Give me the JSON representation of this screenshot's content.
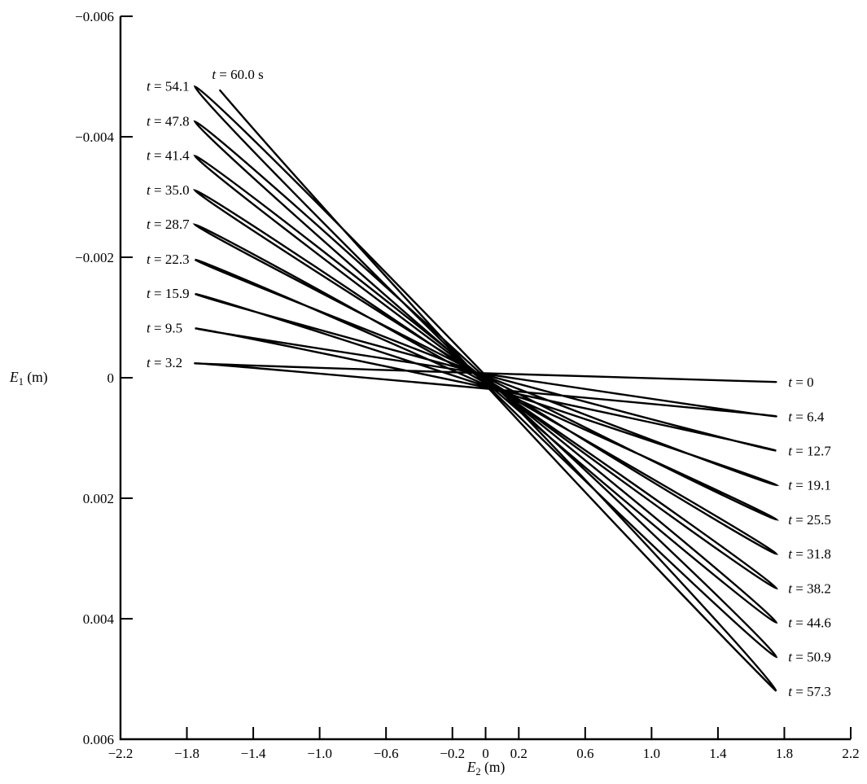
{
  "figure": {
    "background": "#ffffff",
    "ink": "#000000"
  },
  "chart_data": {
    "type": "line",
    "description": "Precessing elliptical pendulum trajectory traced in the (E2, E1) plane from t = 0 to t = 60.0 s; each swing tip is annotated with its time in seconds",
    "time_var": "t",
    "ylabel": {
      "var": "E",
      "sub": "1",
      "unit": " (m)"
    },
    "xlabel": {
      "var": "E",
      "sub": "2",
      "unit": " (m)"
    },
    "x_axis": {
      "range": [
        -2.2,
        2.2
      ],
      "ticks": [
        {
          "v": -2.2,
          "label": "−2.2"
        },
        {
          "v": -1.8,
          "label": "−1.8"
        },
        {
          "v": -1.4,
          "label": "−1.4"
        },
        {
          "v": -1.0,
          "label": "−1.0"
        },
        {
          "v": -0.6,
          "label": "−0.6"
        },
        {
          "v": -0.2,
          "label": "−0.2"
        },
        {
          "v": 0,
          "label": "0"
        },
        {
          "v": 0.2,
          "label": "0.2"
        },
        {
          "v": 0.6,
          "label": "0.6"
        },
        {
          "v": 1.0,
          "label": "1.0"
        },
        {
          "v": 1.4,
          "label": "1.4"
        },
        {
          "v": 1.8,
          "label": "1.8"
        },
        {
          "v": 2.2,
          "label": "2.2"
        }
      ]
    },
    "y_axis": {
      "range": [
        -0.006,
        0.006
      ],
      "inverted_positive_down": true,
      "ticks": [
        {
          "v": -0.006,
          "label": "−0.006"
        },
        {
          "v": -0.004,
          "label": "−0.004"
        },
        {
          "v": -0.002,
          "label": "−0.002"
        },
        {
          "v": 0,
          "label": "0"
        },
        {
          "v": 0.002,
          "label": "0.002"
        },
        {
          "v": 0.004,
          "label": "0.004"
        },
        {
          "v": 0.006,
          "label": "0.006"
        }
      ]
    },
    "trajectory_tips": [
      {
        "t": "0",
        "side": "right",
        "E2": 1.75,
        "E1": 7e-05
      },
      {
        "t": "3.2",
        "side": "left",
        "E2": -1.75,
        "E1": -0.00024
      },
      {
        "t": "6.4",
        "side": "right",
        "E2": 1.75,
        "E1": 0.00064
      },
      {
        "t": "9.5",
        "side": "left",
        "E2": -1.75,
        "E1": -0.00082
      },
      {
        "t": "12.7",
        "side": "right",
        "E2": 1.75,
        "E1": 0.00121
      },
      {
        "t": "15.9",
        "side": "left",
        "E2": -1.75,
        "E1": -0.00139
      },
      {
        "t": "19.1",
        "side": "right",
        "E2": 1.75,
        "E1": 0.00178
      },
      {
        "t": "22.3",
        "side": "left",
        "E2": -1.75,
        "E1": -0.00196
      },
      {
        "t": "25.5",
        "side": "right",
        "E2": 1.75,
        "E1": 0.00235
      },
      {
        "t": "28.7",
        "side": "left",
        "E2": -1.75,
        "E1": -0.00254
      },
      {
        "t": "31.8",
        "side": "right",
        "E2": 1.75,
        "E1": 0.00292
      },
      {
        "t": "35.0",
        "side": "left",
        "E2": -1.75,
        "E1": -0.00311
      },
      {
        "t": "38.2",
        "side": "right",
        "E2": 1.75,
        "E1": 0.00349
      },
      {
        "t": "41.4",
        "side": "left",
        "E2": -1.75,
        "E1": -0.00368
      },
      {
        "t": "44.6",
        "side": "right",
        "E2": 1.75,
        "E1": 0.00406
      },
      {
        "t": "47.8",
        "side": "left",
        "E2": -1.75,
        "E1": -0.00425
      },
      {
        "t": "50.9",
        "side": "right",
        "E2": 1.75,
        "E1": 0.00463
      },
      {
        "t": "54.1",
        "side": "left",
        "E2": -1.75,
        "E1": -0.00483
      },
      {
        "t": "57.3",
        "side": "right",
        "E2": 1.75,
        "E1": 0.0052
      },
      {
        "t": "60.0",
        "unit": " s",
        "side": "end",
        "E2": -1.6,
        "E1": -0.00477
      }
    ]
  }
}
